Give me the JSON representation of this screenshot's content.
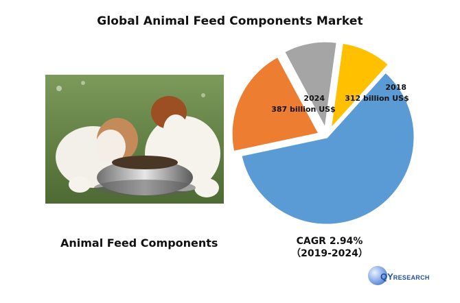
{
  "title": "Global Animal Feed Components Market",
  "product_label": "Animal Feed Components",
  "cagr_line1": "CAGR 2.94%",
  "cagr_line2": "（2019-2024）",
  "logo": {
    "text_big": "QY",
    "text_small": "RESEARCH"
  },
  "chart_data": {
    "type": "pie",
    "slices": [
      {
        "value": 60.0,
        "color": "#5B9BD5",
        "explode": 0
      },
      {
        "value": 20.5,
        "color": "#ED7D31",
        "explode": 1
      },
      {
        "value": 10.0,
        "color": "#A5A5A5",
        "explode": 1
      },
      {
        "value": 9.5,
        "color": "#FFC000",
        "explode": 1
      }
    ],
    "annotations": [
      {
        "year": "2024",
        "value": "387 billion US$"
      },
      {
        "year": "2018",
        "value": "312 billion US$"
      }
    ]
  }
}
